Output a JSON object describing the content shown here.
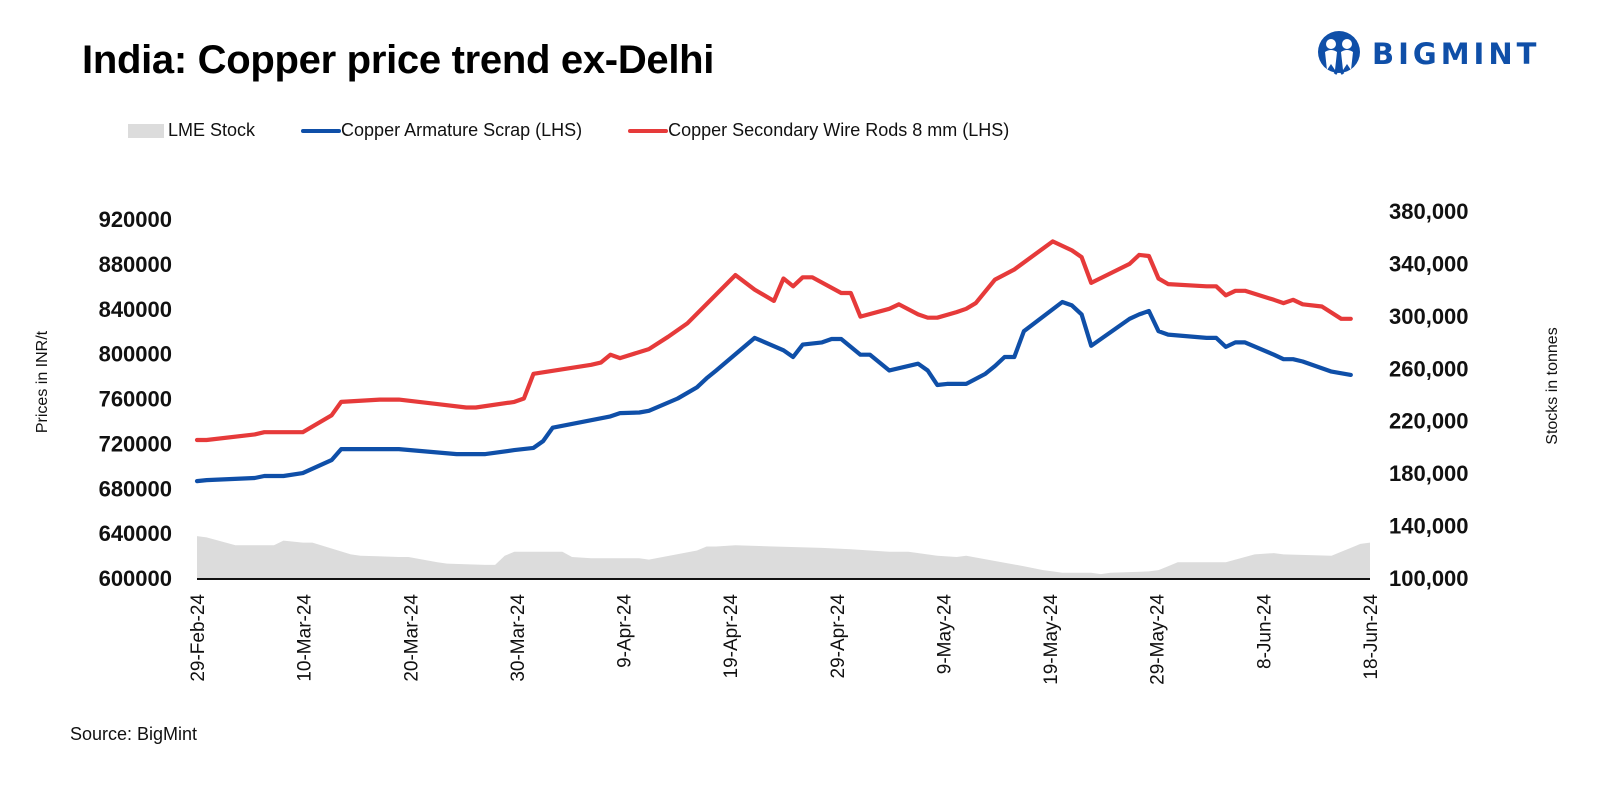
{
  "header": {
    "title": "India: Copper price trend ex-Delhi",
    "logo_text": "BIGMINT"
  },
  "legend": [
    {
      "label": "LME Stock",
      "kind": "area",
      "color": "#dcdcdc"
    },
    {
      "label": "Copper Armature Scrap (LHS)",
      "kind": "line",
      "color": "#0f4fa8"
    },
    {
      "label": "Copper Secondary Wire Rods 8 mm (LHS)",
      "kind": "line",
      "color": "#e63a3a"
    }
  ],
  "footer": {
    "source": "Source: BigMint"
  },
  "chart_data": {
    "type": "line",
    "title": "India: Copper price trend ex-Delhi",
    "xlabel": "",
    "ylabel": "Prices in INR/t",
    "y2label": "Stocks in tonnes",
    "x_start": "2024-02-29",
    "x_end": "2024-06-18",
    "x_ticks": [
      "29-Feb-24",
      "10-Mar-24",
      "20-Mar-24",
      "30-Mar-24",
      "9-Apr-24",
      "19-Apr-24",
      "29-Apr-24",
      "9-May-24",
      "19-May-24",
      "29-May-24",
      "8-Jun-24",
      "18-Jun-24"
    ],
    "ylim": [
      600000,
      920000
    ],
    "y_ticks": [
      "600000",
      "640000",
      "680000",
      "720000",
      "760000",
      "800000",
      "840000",
      "880000",
      "920000"
    ],
    "y2lim": [
      100000,
      380000
    ],
    "y2_ticks": [
      "100,000",
      "140,000",
      "180,000",
      "220,000",
      "260,000",
      "300,000",
      "340,000",
      "380,000"
    ],
    "grid": false,
    "legend_position": "top-left",
    "series": [
      {
        "name": "Copper Armature Scrap (LHS)",
        "axis": "left",
        "kind": "line",
        "color": "#0f4fa8",
        "points": [
          [
            0,
            686400
          ],
          [
            1,
            687300
          ],
          [
            6,
            689100
          ],
          [
            7,
            690900
          ],
          [
            9,
            690900
          ],
          [
            11,
            693500
          ],
          [
            14,
            705100
          ],
          [
            15,
            714900
          ],
          [
            21,
            714900
          ],
          [
            27,
            710400
          ],
          [
            30,
            710400
          ],
          [
            33,
            714000
          ],
          [
            35,
            716000
          ],
          [
            36,
            722000
          ],
          [
            37,
            734000
          ],
          [
            40,
            739000
          ],
          [
            43,
            744000
          ],
          [
            44,
            747000
          ],
          [
            46,
            747500
          ],
          [
            47,
            749000
          ],
          [
            50,
            760000
          ],
          [
            52,
            770000
          ],
          [
            53,
            778000
          ],
          [
            54,
            785000
          ],
          [
            58,
            814000
          ],
          [
            61,
            803000
          ],
          [
            62,
            797000
          ],
          [
            63,
            808000
          ],
          [
            65,
            810000
          ],
          [
            66,
            813000
          ],
          [
            67,
            813000
          ],
          [
            69,
            799000
          ],
          [
            70,
            799000
          ],
          [
            72,
            785000
          ],
          [
            75,
            791000
          ],
          [
            76,
            785000
          ],
          [
            77,
            772000
          ],
          [
            78,
            773000
          ],
          [
            80,
            773000
          ],
          [
            82,
            782000
          ],
          [
            83,
            789000
          ],
          [
            84,
            797000
          ],
          [
            85,
            797000
          ],
          [
            86,
            820000
          ],
          [
            90,
            846000
          ],
          [
            91,
            843000
          ],
          [
            92,
            835000
          ],
          [
            93,
            807000
          ],
          [
            97,
            831000
          ],
          [
            98,
            835000
          ],
          [
            99,
            838000
          ],
          [
            100,
            820000
          ],
          [
            101,
            817000
          ],
          [
            105,
            814000
          ],
          [
            106,
            814000
          ],
          [
            107,
            806000
          ],
          [
            108,
            810000
          ],
          [
            109,
            810000
          ],
          [
            112,
            799000
          ],
          [
            113,
            795000
          ],
          [
            114,
            795000
          ],
          [
            115,
            793000
          ],
          [
            118,
            784000
          ],
          [
            120,
            781000
          ]
        ]
      },
      {
        "name": "Copper Secondary Wire Rods 8 mm (LHS)",
        "axis": "left",
        "kind": "line",
        "color": "#e63a3a",
        "points": [
          [
            0,
            723000
          ],
          [
            1,
            723000
          ],
          [
            6,
            728000
          ],
          [
            7,
            730000
          ],
          [
            9,
            730000
          ],
          [
            11,
            730000
          ],
          [
            14,
            745000
          ],
          [
            15,
            757000
          ],
          [
            19,
            759000
          ],
          [
            21,
            759000
          ],
          [
            25,
            755000
          ],
          [
            28,
            752000
          ],
          [
            29,
            752000
          ],
          [
            33,
            757000
          ],
          [
            34,
            760000
          ],
          [
            35,
            782000
          ],
          [
            41,
            790000
          ],
          [
            42,
            792000
          ],
          [
            43,
            799000
          ],
          [
            44,
            796000
          ],
          [
            47,
            804000
          ],
          [
            49,
            815000
          ],
          [
            51,
            827000
          ],
          [
            56,
            870000
          ],
          [
            58,
            857000
          ],
          [
            60,
            847000
          ],
          [
            61,
            867000
          ],
          [
            62,
            860000
          ],
          [
            63,
            868000
          ],
          [
            64,
            868000
          ],
          [
            67,
            854000
          ],
          [
            68,
            854000
          ],
          [
            69,
            833000
          ],
          [
            72,
            840000
          ],
          [
            73,
            844000
          ],
          [
            75,
            835000
          ],
          [
            76,
            832000
          ],
          [
            77,
            832000
          ],
          [
            79,
            837000
          ],
          [
            80,
            840000
          ],
          [
            81,
            845000
          ],
          [
            83,
            866000
          ],
          [
            85,
            875000
          ],
          [
            89,
            900000
          ],
          [
            91,
            892000
          ],
          [
            92,
            886000
          ],
          [
            93,
            863000
          ],
          [
            97,
            880000
          ],
          [
            98,
            888000
          ],
          [
            99,
            887000
          ],
          [
            100,
            867000
          ],
          [
            101,
            862000
          ],
          [
            105,
            860000
          ],
          [
            106,
            860000
          ],
          [
            107,
            852000
          ],
          [
            108,
            856000
          ],
          [
            109,
            856000
          ],
          [
            112,
            848000
          ],
          [
            113,
            845000
          ],
          [
            114,
            848000
          ],
          [
            115,
            844000
          ],
          [
            117,
            842000
          ],
          [
            119,
            831000
          ],
          [
            120,
            831000
          ]
        ]
      },
      {
        "name": "LME Stock",
        "axis": "right",
        "kind": "area",
        "color": "#dcdcdc",
        "points": [
          [
            0,
            132000
          ],
          [
            1,
            131000
          ],
          [
            3,
            127000
          ],
          [
            4,
            125000
          ],
          [
            6,
            125000
          ],
          [
            8,
            125000
          ],
          [
            9,
            128500
          ],
          [
            11,
            127000
          ],
          [
            12,
            127000
          ],
          [
            16,
            118000
          ],
          [
            17,
            117000
          ],
          [
            21,
            116000
          ],
          [
            22,
            116000
          ],
          [
            25,
            112000
          ],
          [
            26,
            111000
          ],
          [
            30,
            110000
          ],
          [
            31,
            110000
          ],
          [
            32,
            117000
          ],
          [
            33,
            120000
          ],
          [
            38,
            120000
          ],
          [
            39,
            116000
          ],
          [
            41,
            115000
          ],
          [
            44,
            115000
          ],
          [
            46,
            115000
          ],
          [
            47,
            114000
          ],
          [
            52,
            121000
          ],
          [
            53,
            124000
          ],
          [
            54,
            124000
          ],
          [
            56,
            125000
          ],
          [
            60,
            124000
          ],
          [
            65,
            123000
          ],
          [
            68,
            122000
          ],
          [
            70,
            121000
          ],
          [
            72,
            120000
          ],
          [
            74,
            120000
          ],
          [
            77,
            117000
          ],
          [
            79,
            116000
          ],
          [
            80,
            117000
          ],
          [
            83,
            113000
          ],
          [
            86,
            109000
          ],
          [
            88,
            106000
          ],
          [
            89,
            105000
          ],
          [
            90,
            104000
          ],
          [
            92,
            104000
          ],
          [
            93,
            104000
          ],
          [
            94,
            103000
          ],
          [
            95,
            104000
          ],
          [
            99,
            105000
          ],
          [
            100,
            106000
          ],
          [
            101,
            109000
          ],
          [
            102,
            112000
          ],
          [
            107,
            112000
          ],
          [
            108,
            114000
          ],
          [
            110,
            118000
          ],
          [
            112,
            119000
          ],
          [
            113,
            118000
          ],
          [
            118,
            117000
          ],
          [
            119,
            120000
          ],
          [
            120,
            123000
          ],
          [
            121,
            126000
          ],
          [
            122,
            127000
          ]
        ]
      }
    ]
  }
}
